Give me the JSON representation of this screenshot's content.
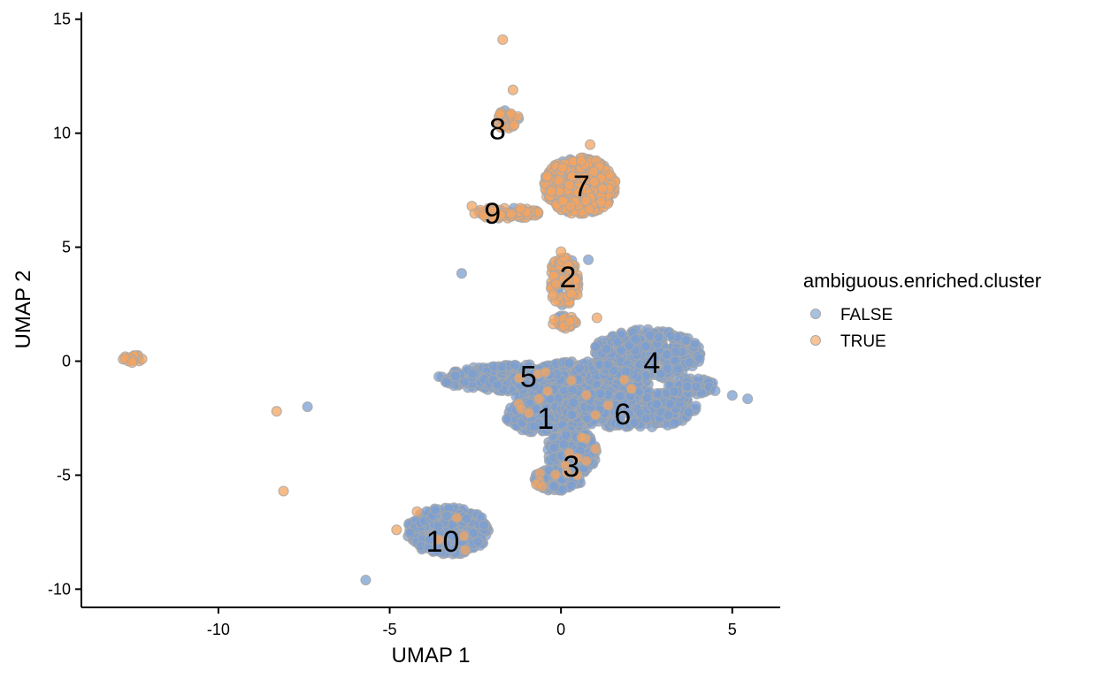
{
  "chart_data": {
    "type": "scatter",
    "xlabel": "UMAP 1",
    "ylabel": "UMAP 2",
    "xlim": [
      -14,
      6.4
    ],
    "ylim": [
      -10.8,
      15.3
    ],
    "xticks": [
      -10,
      -5,
      0,
      5
    ],
    "yticks": [
      -10,
      -5,
      0,
      5,
      10,
      15
    ],
    "xtick_labels": [
      "-10",
      "-5",
      "0",
      "5"
    ],
    "ytick_labels": [
      "-10",
      "-5",
      "0",
      "5",
      "10",
      "15"
    ],
    "grid": false,
    "legend": {
      "title": "ambiguous.enriched.cluster",
      "position": "right",
      "entries": [
        {
          "label": "FALSE",
          "color": "#7b9fd1"
        },
        {
          "label": "TRUE",
          "color": "#f4a460"
        }
      ]
    },
    "colors": {
      "FALSE": "#7b9fd1",
      "TRUE": "#f4a460",
      "outline": "#a8a8a8"
    },
    "clusters": [
      {
        "label": "1",
        "x": -0.45,
        "y": -2.5,
        "ambiguous": false
      },
      {
        "label": "2",
        "x": 0.2,
        "y": 3.7,
        "ambiguous": true
      },
      {
        "label": "3",
        "x": 0.3,
        "y": -4.6,
        "ambiguous": false
      },
      {
        "label": "4",
        "x": 2.65,
        "y": -0.05,
        "ambiguous": false
      },
      {
        "label": "5",
        "x": -0.95,
        "y": -0.65,
        "ambiguous": false
      },
      {
        "label": "6",
        "x": 1.8,
        "y": -2.3,
        "ambiguous": false
      },
      {
        "label": "7",
        "x": 0.6,
        "y": 7.7,
        "ambiguous": true
      },
      {
        "label": "8",
        "x": -1.85,
        "y": 10.2,
        "ambiguous": true
      },
      {
        "label": "9",
        "x": -2.0,
        "y": 6.5,
        "ambiguous": true
      },
      {
        "label": "10",
        "x": -3.45,
        "y": -7.9,
        "ambiguous": false
      }
    ],
    "blobs": [
      {
        "cx": -0.9,
        "cy": -0.75,
        "rx": 2.7,
        "ry": 0.6,
        "n": 420,
        "p_true": 0.0
      },
      {
        "cx": 0.6,
        "cy": -1.2,
        "rx": 2.0,
        "ry": 1.2,
        "n": 500,
        "p_true": 0.02
      },
      {
        "cx": -0.3,
        "cy": -2.4,
        "rx": 1.3,
        "ry": 0.8,
        "n": 260,
        "p_true": 0.01
      },
      {
        "cx": 2.5,
        "cy": 0.3,
        "rx": 1.6,
        "ry": 1.1,
        "n": 420,
        "p_true": 0.0
      },
      {
        "cx": 2.1,
        "cy": -2.1,
        "rx": 1.9,
        "ry": 0.85,
        "n": 330,
        "p_true": 0.0
      },
      {
        "cx": 3.8,
        "cy": -1.1,
        "rx": 0.7,
        "ry": 0.35,
        "n": 60,
        "p_true": 0.0
      },
      {
        "cx": 0.3,
        "cy": -4.0,
        "rx": 0.75,
        "ry": 1.0,
        "n": 200,
        "p_true": 0.03
      },
      {
        "cx": -0.1,
        "cy": -5.2,
        "rx": 0.7,
        "ry": 0.5,
        "n": 120,
        "p_true": 0.04
      },
      {
        "cx": 0.55,
        "cy": 7.7,
        "rx": 1.05,
        "ry": 1.25,
        "n": 420,
        "p_true": 0.8
      },
      {
        "cx": -1.6,
        "cy": 6.5,
        "rx": 0.95,
        "ry": 0.25,
        "n": 90,
        "p_true": 0.85
      },
      {
        "cx": 0.1,
        "cy": 3.5,
        "rx": 0.45,
        "ry": 1.1,
        "n": 100,
        "p_true": 0.8
      },
      {
        "cx": 0.1,
        "cy": 1.7,
        "rx": 0.35,
        "ry": 0.3,
        "n": 30,
        "p_true": 0.8
      },
      {
        "cx": -1.6,
        "cy": 10.6,
        "rx": 0.4,
        "ry": 0.4,
        "n": 28,
        "p_true": 0.85
      },
      {
        "cx": -3.3,
        "cy": -7.45,
        "rx": 1.2,
        "ry": 1.05,
        "n": 340,
        "p_true": 0.01
      },
      {
        "cx": -12.5,
        "cy": 0.1,
        "rx": 0.3,
        "ry": 0.18,
        "n": 22,
        "p_true": 0.9
      }
    ],
    "outliers": [
      {
        "x": -1.7,
        "y": 14.1,
        "ambiguous": true
      },
      {
        "x": -1.4,
        "y": 11.9,
        "ambiguous": true
      },
      {
        "x": 0.85,
        "y": 9.5,
        "ambiguous": true
      },
      {
        "x": -2.6,
        "y": 6.8,
        "ambiguous": true
      },
      {
        "x": -0.4,
        "y": 8.1,
        "ambiguous": true
      },
      {
        "x": -2.9,
        "y": 3.85,
        "ambiguous": false
      },
      {
        "x": 0.8,
        "y": 4.45,
        "ambiguous": false
      },
      {
        "x": 1.05,
        "y": 1.9,
        "ambiguous": true
      },
      {
        "x": 0.0,
        "y": 4.8,
        "ambiguous": true
      },
      {
        "x": -8.3,
        "y": -2.2,
        "ambiguous": true
      },
      {
        "x": -7.4,
        "y": -2.0,
        "ambiguous": false
      },
      {
        "x": -8.1,
        "y": -5.7,
        "ambiguous": true
      },
      {
        "x": -5.7,
        "y": -9.6,
        "ambiguous": false
      },
      {
        "x": -4.8,
        "y": -7.4,
        "ambiguous": true
      },
      {
        "x": -4.2,
        "y": -6.6,
        "ambiguous": true
      },
      {
        "x": 5.45,
        "y": -1.65,
        "ambiguous": false
      },
      {
        "x": 5.0,
        "y": -1.5,
        "ambiguous": false
      },
      {
        "x": 4.5,
        "y": -1.3,
        "ambiguous": false
      },
      {
        "x": -0.55,
        "y": -5.5,
        "ambiguous": true
      }
    ]
  }
}
